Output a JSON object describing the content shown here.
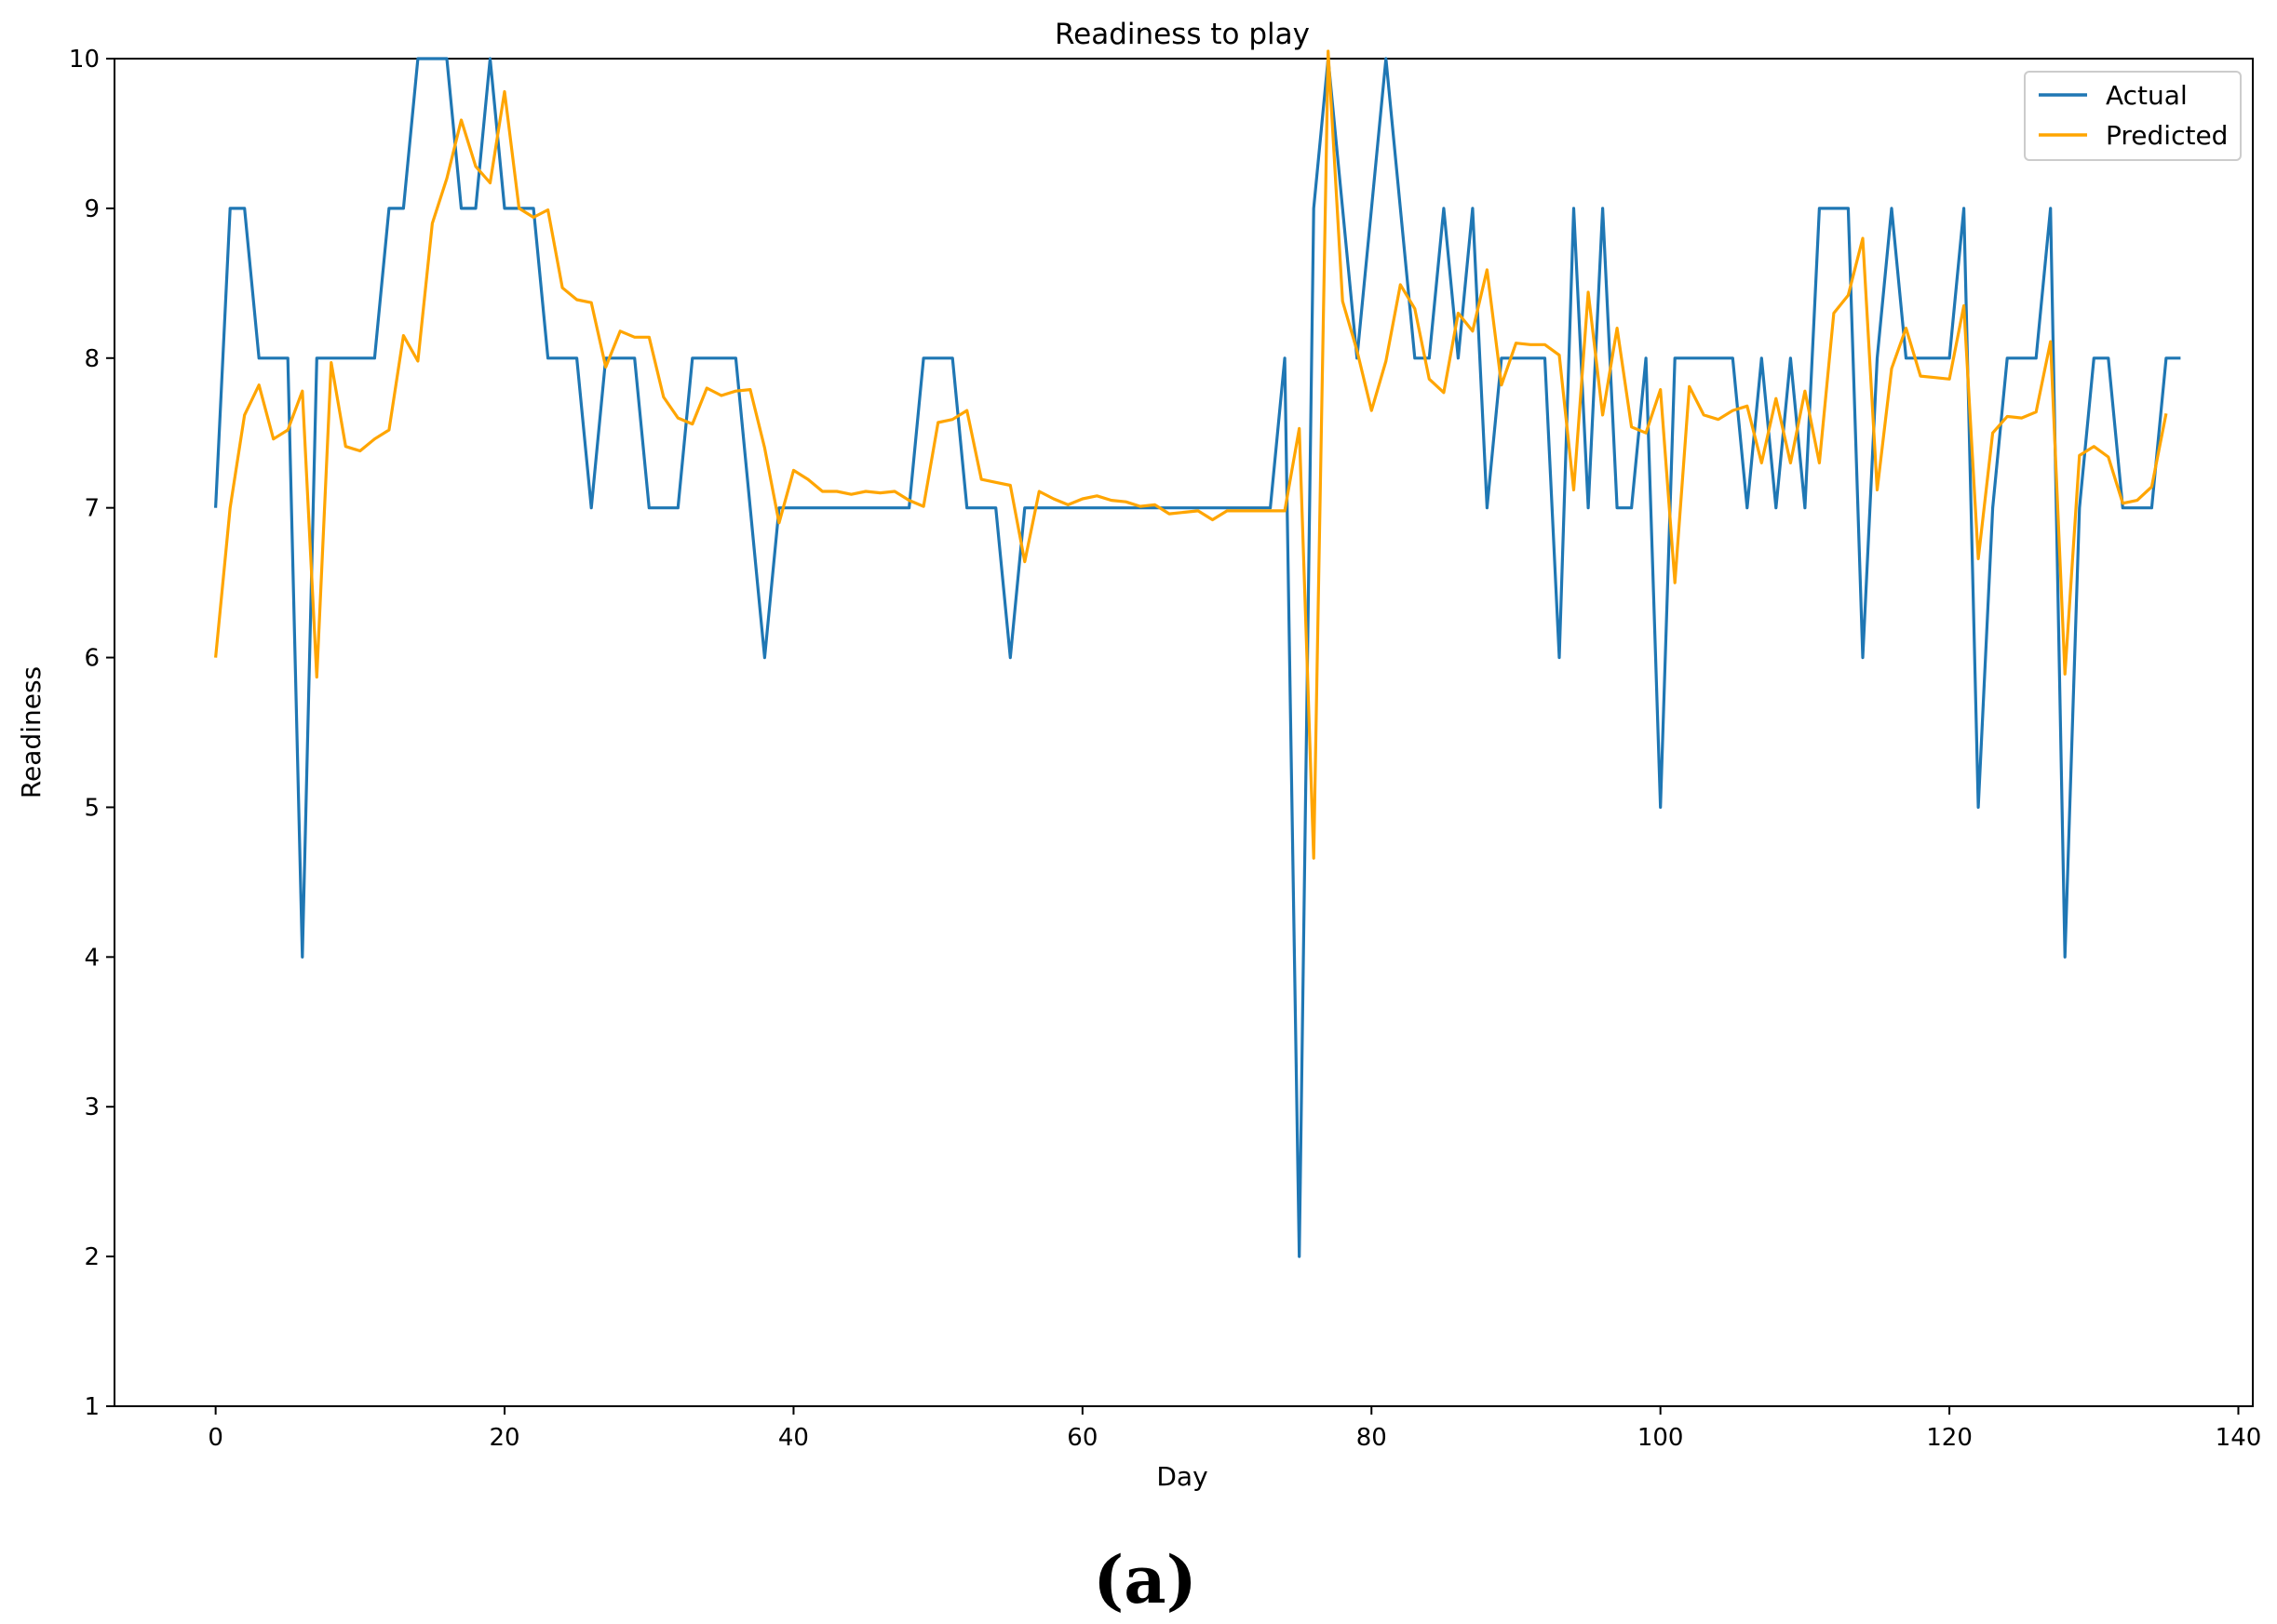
{
  "panel_label": "(a)",
  "chart_data": {
    "type": "line",
    "title": "Readiness to play",
    "xlabel": "Day",
    "ylabel": "Readiness",
    "xlim": [
      -7,
      141
    ],
    "ylim": [
      1,
      10
    ],
    "xticks": [
      0,
      20,
      40,
      60,
      80,
      100,
      120,
      140
    ],
    "yticks": [
      1,
      2,
      3,
      4,
      5,
      6,
      7,
      8,
      9,
      10
    ],
    "grid": false,
    "legend_position": "top-right",
    "series": [
      {
        "name": "Actual",
        "color": "#1f77b4",
        "x_start": 0,
        "values": [
          7,
          9,
          9,
          8,
          8,
          8,
          4,
          8,
          8,
          8,
          8,
          8,
          9,
          9,
          10,
          10,
          10,
          9,
          9,
          10,
          9,
          9,
          9,
          8,
          8,
          8,
          7,
          8,
          8,
          8,
          7,
          7,
          7,
          8,
          8,
          8,
          8,
          7,
          6,
          7,
          7,
          7,
          7,
          7,
          7,
          7,
          7,
          7,
          7,
          8,
          8,
          8,
          7,
          7,
          7,
          6,
          7,
          7,
          7,
          7,
          7,
          7,
          7,
          7,
          7,
          7,
          7,
          7,
          7,
          7,
          7,
          7,
          7,
          7,
          8,
          2,
          9,
          10,
          9,
          8,
          9,
          10,
          9,
          8,
          8,
          9,
          8,
          9,
          7,
          8,
          8,
          8,
          8,
          6,
          9,
          7,
          9,
          7,
          7,
          8,
          5,
          8,
          8,
          8,
          8,
          8,
          7,
          8,
          7,
          8,
          7,
          9,
          9,
          9,
          6,
          8,
          9,
          8,
          8,
          8,
          8,
          9,
          5,
          7,
          8,
          8,
          8,
          9,
          4,
          7,
          8,
          8,
          7,
          7,
          7,
          8,
          8
        ]
      },
      {
        "name": "Predicted",
        "color": "#ffa500",
        "x_start": 0,
        "values": [
          6.0,
          7.0,
          7.62,
          7.82,
          7.46,
          7.52,
          7.78,
          5.87,
          7.97,
          7.41,
          7.38,
          7.46,
          7.52,
          8.15,
          7.98,
          8.9,
          9.2,
          9.59,
          9.28,
          9.17,
          9.78,
          9.0,
          8.94,
          8.99,
          8.47,
          8.39,
          8.37,
          7.94,
          8.18,
          8.14,
          8.14,
          7.74,
          7.6,
          7.56,
          7.8,
          7.75,
          7.78,
          7.79,
          7.4,
          6.9,
          7.25,
          7.19,
          7.11,
          7.11,
          7.09,
          7.11,
          7.1,
          7.11,
          7.05,
          7.01,
          7.57,
          7.59,
          7.65,
          7.19,
          7.17,
          7.15,
          6.64,
          7.11,
          7.06,
          7.02,
          7.06,
          7.08,
          7.05,
          7.04,
          7.01,
          7.02,
          6.96,
          6.97,
          6.98,
          6.92,
          6.98,
          6.98,
          6.98,
          6.98,
          6.98,
          7.53,
          4.66,
          10.05,
          8.38,
          8.05,
          7.65,
          7.98,
          8.49,
          8.33,
          7.86,
          7.77,
          8.3,
          8.18,
          8.59,
          7.82,
          8.1,
          8.09,
          8.09,
          8.02,
          7.12,
          8.44,
          7.62,
          8.2,
          7.54,
          7.5,
          7.79,
          6.5,
          7.81,
          7.62,
          7.59,
          7.65,
          7.68,
          7.3,
          7.73,
          7.3,
          7.78,
          7.3,
          8.3,
          8.42,
          8.8,
          7.12,
          7.93,
          8.2,
          7.88,
          7.87,
          7.86,
          8.35,
          6.66,
          7.5,
          7.61,
          7.6,
          7.64,
          8.11,
          5.89,
          7.35,
          7.41,
          7.34,
          7.03,
          7.05,
          7.14,
          7.63
        ]
      }
    ]
  }
}
